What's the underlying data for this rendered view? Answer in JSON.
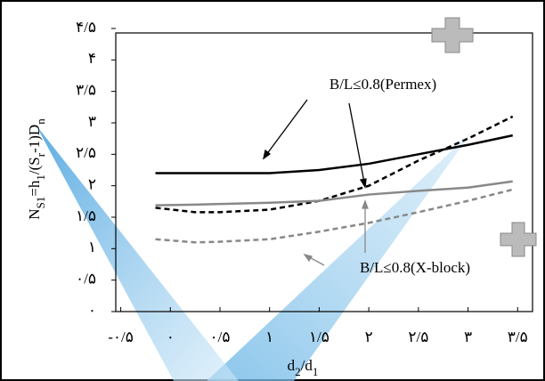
{
  "chart_data": {
    "type": "line",
    "x": [
      -0.15,
      0.25,
      0.5,
      1,
      1.5,
      2,
      2.5,
      3,
      3.45
    ],
    "series": [
      {
        "color": "#000000",
        "dash": false,
        "values": [
          2.2,
          2.2,
          2.2,
          2.2,
          2.25,
          2.35,
          2.5,
          2.65,
          2.8
        ]
      },
      {
        "color": "#000000",
        "dash": true,
        "values": [
          1.65,
          1.58,
          1.58,
          1.62,
          1.76,
          2.0,
          2.4,
          2.75,
          3.1
        ]
      },
      {
        "color": "#888888",
        "dash": false,
        "values": [
          1.69,
          1.7,
          1.71,
          1.73,
          1.76,
          1.86,
          1.92,
          1.97,
          2.07
        ]
      },
      {
        "color": "#888888",
        "dash": true,
        "values": [
          1.15,
          1.1,
          1.11,
          1.15,
          1.27,
          1.41,
          1.58,
          1.76,
          1.94
        ]
      }
    ],
    "xlim": [
      -0.55,
      3.65
    ],
    "ylim": [
      0,
      4.5
    ],
    "xticks": [
      {
        "value": -0.5,
        "label": "-٠/۵"
      },
      {
        "value": 0,
        "label": "٠"
      },
      {
        "value": 0.5,
        "label": "٠/۵"
      },
      {
        "value": 1,
        "label": "۱"
      },
      {
        "value": 1.5,
        "label": "۱/۵"
      },
      {
        "value": 2,
        "label": "۲"
      },
      {
        "value": 2.5,
        "label": "۲/۵"
      },
      {
        "value": 3,
        "label": "۳"
      },
      {
        "value": 3.5,
        "label": "۳/۵"
      }
    ],
    "yticks": [
      {
        "value": 0,
        "label": "٠"
      },
      {
        "value": 0.5,
        "label": "٠/۵"
      },
      {
        "value": 1,
        "label": "۱"
      },
      {
        "value": 1.5,
        "label": "۱/۵"
      },
      {
        "value": 2,
        "label": "۲"
      },
      {
        "value": 2.5,
        "label": "۲/۵"
      },
      {
        "value": 3,
        "label": "۳"
      },
      {
        "value": 3.5,
        "label": "۳/۵"
      },
      {
        "value": 4,
        "label": "۴"
      },
      {
        "value": 4.5,
        "label": "۴/۵"
      }
    ],
    "xlabel": [
      {
        "text": "d"
      },
      {
        "text": "2",
        "sub": true
      },
      {
        "text": "/d"
      },
      {
        "text": "1",
        "sub": true
      }
    ],
    "ylabel": [
      {
        "text": "N"
      },
      {
        "text": "S1",
        "sub": true
      },
      {
        "text": "=h"
      },
      {
        "text": "1",
        "sub": true
      },
      {
        "text": "/(S"
      },
      {
        "text": "r",
        "sub": true
      },
      {
        "text": "-1)D"
      },
      {
        "text": "n",
        "sub": true
      }
    ],
    "annotations": [
      "B/L≤0.8(Permex)",
      "B/L≤0.8(X-block)"
    ]
  }
}
